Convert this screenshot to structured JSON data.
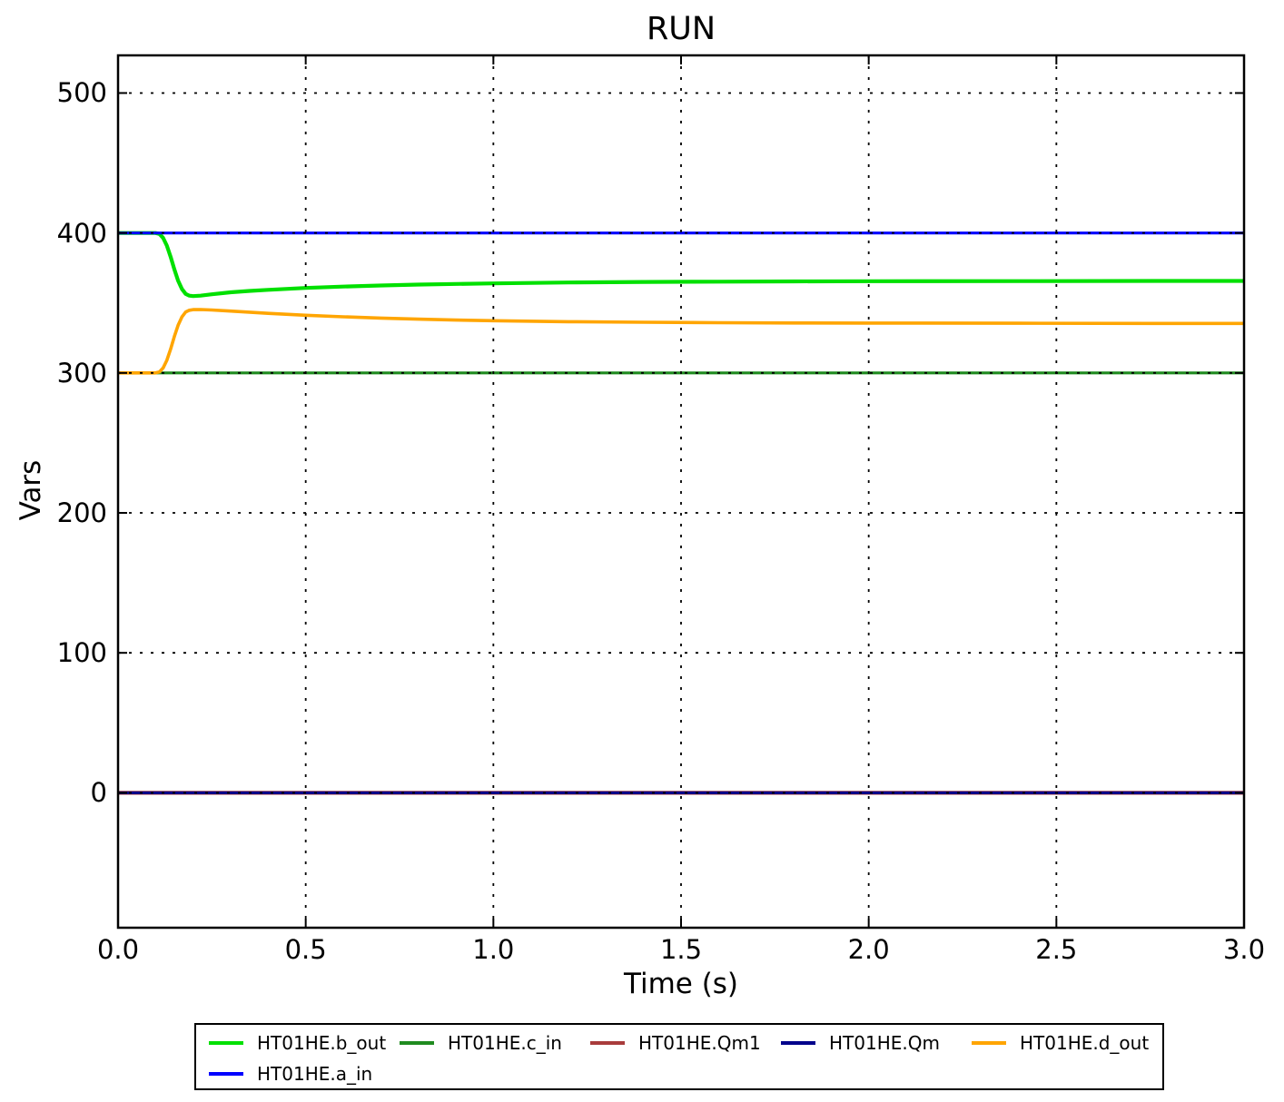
{
  "chart_data": {
    "type": "line",
    "title": "RUN",
    "xlabel": "Time (s)",
    "ylabel": "Vars",
    "xlim": [
      0,
      3
    ],
    "ylim": [
      -96.4,
      526.9
    ],
    "xticks": [
      0,
      0.5,
      1,
      1.5,
      2,
      2.5,
      3
    ],
    "xtick_labels": [
      "0.0",
      "0.5",
      "1.0",
      "1.5",
      "2.0",
      "2.5",
      "3.0"
    ],
    "yticks": [
      0,
      100,
      200,
      300,
      400,
      500
    ],
    "ytick_labels": [
      "0",
      "100",
      "200",
      "300",
      "400",
      "500"
    ],
    "grid": true,
    "grid_style": "dotted",
    "legend_position": "bottom",
    "axis_color": "#000000",
    "series": [
      {
        "name": "HT01HE.b_out",
        "color": "#00e000",
        "lw": 4.2,
        "points": [
          [
            0,
            400
          ],
          [
            0.1,
            400
          ],
          [
            0.11,
            399.3
          ],
          [
            0.12,
            396.5
          ],
          [
            0.13,
            391
          ],
          [
            0.14,
            383
          ],
          [
            0.15,
            374
          ],
          [
            0.16,
            366
          ],
          [
            0.17,
            360
          ],
          [
            0.18,
            356.5
          ],
          [
            0.19,
            355.2
          ],
          [
            0.2,
            354.9
          ],
          [
            0.22,
            355.2
          ],
          [
            0.25,
            356.2
          ],
          [
            0.3,
            357.6
          ],
          [
            0.35,
            358.6
          ],
          [
            0.4,
            359.4
          ],
          [
            0.5,
            360.7
          ],
          [
            0.6,
            361.7
          ],
          [
            0.7,
            362.5
          ],
          [
            0.8,
            363.1
          ],
          [
            0.9,
            363.6
          ],
          [
            1.0,
            364.0
          ],
          [
            1.2,
            364.6
          ],
          [
            1.4,
            365.0
          ],
          [
            1.6,
            365.2
          ],
          [
            1.8,
            365.4
          ],
          [
            2.0,
            365.5
          ],
          [
            2.4,
            365.6
          ],
          [
            2.8,
            365.7
          ],
          [
            3.0,
            365.7
          ]
        ]
      },
      {
        "name": "HT01HE.c_in",
        "color": "#1f8b1f",
        "lw": 3.2,
        "points": [
          [
            0,
            300
          ],
          [
            3,
            300
          ]
        ]
      },
      {
        "name": "HT01HE.Qm1",
        "color": "#a93c3c",
        "lw": 4.2,
        "points": [
          [
            0,
            0
          ],
          [
            3,
            0
          ]
        ]
      },
      {
        "name": "HT01HE.Qm",
        "color": "#00008b",
        "lw": 3.0,
        "points": [
          [
            0,
            0
          ],
          [
            3,
            0
          ]
        ]
      },
      {
        "name": "HT01HE.d_out",
        "color": "#ffa500",
        "lw": 3.6,
        "points": [
          [
            0,
            300
          ],
          [
            0.1,
            300
          ],
          [
            0.11,
            300.7
          ],
          [
            0.12,
            303.5
          ],
          [
            0.13,
            309
          ],
          [
            0.14,
            317
          ],
          [
            0.15,
            326
          ],
          [
            0.16,
            334
          ],
          [
            0.17,
            340
          ],
          [
            0.18,
            343.5
          ],
          [
            0.19,
            344.8
          ],
          [
            0.2,
            345.2
          ],
          [
            0.22,
            345.3
          ],
          [
            0.25,
            345.0
          ],
          [
            0.3,
            344.2
          ],
          [
            0.35,
            343.4
          ],
          [
            0.4,
            342.6
          ],
          [
            0.5,
            341.2
          ],
          [
            0.6,
            340.1
          ],
          [
            0.7,
            339.2
          ],
          [
            0.8,
            338.4
          ],
          [
            0.9,
            337.8
          ],
          [
            1.0,
            337.3
          ],
          [
            1.2,
            336.6
          ],
          [
            1.4,
            336.2
          ],
          [
            1.6,
            335.9
          ],
          [
            1.8,
            335.7
          ],
          [
            2.0,
            335.6
          ],
          [
            2.4,
            335.5
          ],
          [
            2.8,
            335.4
          ],
          [
            3.0,
            335.4
          ]
        ]
      },
      {
        "name": "HT01HE.a_in",
        "color": "#0000ff",
        "lw": 3.2,
        "points": [
          [
            0,
            400
          ],
          [
            3,
            400
          ]
        ]
      }
    ],
    "draw_order": [
      1,
      4,
      0,
      5,
      2,
      3
    ]
  }
}
